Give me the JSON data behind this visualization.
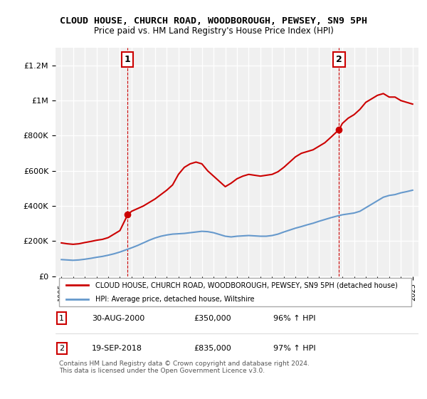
{
  "title": "CLOUD HOUSE, CHURCH ROAD, WOODBOROUGH, PEWSEY, SN9 5PH",
  "subtitle": "Price paid vs. HM Land Registry's House Price Index (HPI)",
  "background_color": "#ffffff",
  "plot_bg_color": "#f0f0f0",
  "grid_color": "#ffffff",
  "red_color": "#cc0000",
  "blue_color": "#6699cc",
  "ylim": [
    0,
    1300000
  ],
  "xlim": [
    1994.5,
    2025.5
  ],
  "yticks": [
    0,
    200000,
    400000,
    600000,
    800000,
    1000000,
    1200000
  ],
  "ytick_labels": [
    "£0",
    "£200K",
    "£400K",
    "£600K",
    "£800K",
    "£1M",
    "£1.2M"
  ],
  "xticks": [
    1995,
    1996,
    1997,
    1998,
    1999,
    2000,
    2001,
    2002,
    2003,
    2004,
    2005,
    2006,
    2007,
    2008,
    2009,
    2010,
    2011,
    2012,
    2013,
    2014,
    2015,
    2016,
    2017,
    2018,
    2019,
    2020,
    2021,
    2022,
    2023,
    2024,
    2025
  ],
  "legend_line1": "CLOUD HOUSE, CHURCH ROAD, WOODBOROUGH, PEWSEY, SN9 5PH (detached house)",
  "legend_line2": "HPI: Average price, detached house, Wiltshire",
  "point1_x": 2000.66,
  "point1_y": 350000,
  "point1_label": "1",
  "point1_date": "30-AUG-2000",
  "point1_price": "£350,000",
  "point1_hpi": "96% ↑ HPI",
  "point2_x": 2018.72,
  "point2_y": 835000,
  "point2_label": "2",
  "point2_date": "19-SEP-2018",
  "point2_price": "£835,000",
  "point2_hpi": "97% ↑ HPI",
  "footer": "Contains HM Land Registry data © Crown copyright and database right 2024.\nThis data is licensed under the Open Government Licence v3.0.",
  "red_x": [
    1995.0,
    1995.5,
    1996.0,
    1996.5,
    1997.0,
    1997.5,
    1998.0,
    1998.5,
    1999.0,
    1999.5,
    2000.0,
    2000.66,
    2001.0,
    2002.0,
    2003.0,
    2004.0,
    2004.5,
    2005.0,
    2005.5,
    2006.0,
    2006.5,
    2007.0,
    2007.5,
    2008.0,
    2008.5,
    2009.0,
    2009.5,
    2010.0,
    2010.5,
    2011.0,
    2011.5,
    2012.0,
    2012.5,
    2013.0,
    2013.5,
    2014.0,
    2014.5,
    2015.0,
    2015.5,
    2016.0,
    2016.5,
    2017.0,
    2017.5,
    2018.0,
    2018.72,
    2019.0,
    2019.5,
    2020.0,
    2020.5,
    2021.0,
    2021.5,
    2022.0,
    2022.5,
    2023.0,
    2023.5,
    2024.0,
    2024.5,
    2025.0
  ],
  "red_y": [
    190000,
    185000,
    182000,
    185000,
    192000,
    198000,
    205000,
    210000,
    220000,
    240000,
    260000,
    350000,
    370000,
    400000,
    440000,
    490000,
    520000,
    580000,
    620000,
    640000,
    650000,
    640000,
    600000,
    570000,
    540000,
    510000,
    530000,
    555000,
    570000,
    580000,
    575000,
    570000,
    575000,
    580000,
    595000,
    620000,
    650000,
    680000,
    700000,
    710000,
    720000,
    740000,
    760000,
    790000,
    835000,
    870000,
    900000,
    920000,
    950000,
    990000,
    1010000,
    1030000,
    1040000,
    1020000,
    1020000,
    1000000,
    990000,
    980000
  ],
  "blue_x": [
    1995.0,
    1995.5,
    1996.0,
    1996.5,
    1997.0,
    1997.5,
    1998.0,
    1998.5,
    1999.0,
    1999.5,
    2000.0,
    2000.5,
    2001.0,
    2001.5,
    2002.0,
    2002.5,
    2003.0,
    2003.5,
    2004.0,
    2004.5,
    2005.0,
    2005.5,
    2006.0,
    2006.5,
    2007.0,
    2007.5,
    2008.0,
    2008.5,
    2009.0,
    2009.5,
    2010.0,
    2010.5,
    2011.0,
    2011.5,
    2012.0,
    2012.5,
    2013.0,
    2013.5,
    2014.0,
    2014.5,
    2015.0,
    2015.5,
    2016.0,
    2016.5,
    2017.0,
    2017.5,
    2018.0,
    2018.5,
    2019.0,
    2019.5,
    2020.0,
    2020.5,
    2021.0,
    2021.5,
    2022.0,
    2022.5,
    2023.0,
    2023.5,
    2024.0,
    2024.5,
    2025.0
  ],
  "blue_y": [
    95000,
    93000,
    91000,
    93000,
    97000,
    102000,
    108000,
    113000,
    120000,
    128000,
    138000,
    150000,
    162000,
    175000,
    190000,
    205000,
    218000,
    228000,
    235000,
    240000,
    242000,
    244000,
    248000,
    252000,
    256000,
    254000,
    248000,
    238000,
    228000,
    224000,
    228000,
    230000,
    232000,
    230000,
    228000,
    228000,
    232000,
    240000,
    252000,
    263000,
    274000,
    283000,
    293000,
    302000,
    313000,
    323000,
    333000,
    342000,
    350000,
    355000,
    360000,
    370000,
    390000,
    410000,
    430000,
    450000,
    460000,
    465000,
    475000,
    482000,
    490000
  ]
}
